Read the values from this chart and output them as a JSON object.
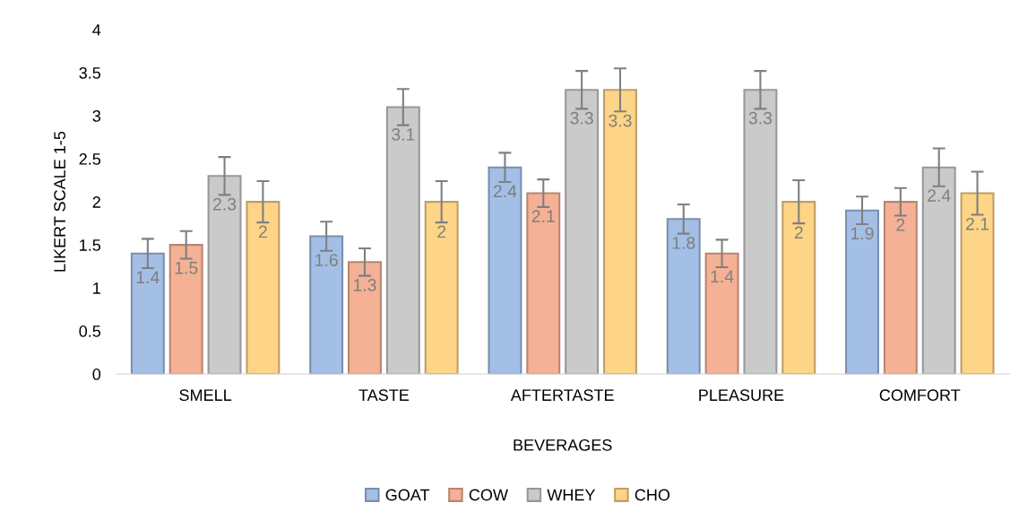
{
  "chart_data": {
    "type": "bar",
    "xlabel": "BEVERAGES",
    "ylabel": "LIKERT SCALE 1-5",
    "categories": [
      "SMELL",
      "TASTE",
      "AFTERTASTE",
      "PLEASURE",
      "COMFORT"
    ],
    "series": [
      {
        "name": "GOAT",
        "color": "#a3bfe6",
        "values": [
          1.4,
          1.6,
          2.4,
          1.8,
          1.9
        ],
        "errors": [
          0.17,
          0.17,
          0.17,
          0.17,
          0.16
        ]
      },
      {
        "name": "COW",
        "color": "#f5b196",
        "values": [
          1.5,
          1.3,
          2.1,
          1.4,
          2
        ],
        "errors": [
          0.16,
          0.16,
          0.16,
          0.16,
          0.16
        ]
      },
      {
        "name": "WHEY",
        "color": "#cacaca",
        "values": [
          2.3,
          3.1,
          3.3,
          3.3,
          2.4
        ],
        "errors": [
          0.22,
          0.21,
          0.22,
          0.22,
          0.22
        ]
      },
      {
        "name": "CHO",
        "color": "#fed486",
        "values": [
          2,
          2,
          3.3,
          2,
          2.1
        ],
        "errors": [
          0.24,
          0.24,
          0.25,
          0.25,
          0.25
        ]
      }
    ],
    "ylim": [
      0,
      4
    ],
    "yticks": [
      0,
      0.5,
      1,
      1.5,
      2,
      2.5,
      3,
      3.5,
      4
    ],
    "data_labels": true,
    "grid": false,
    "legend": "bottom"
  }
}
